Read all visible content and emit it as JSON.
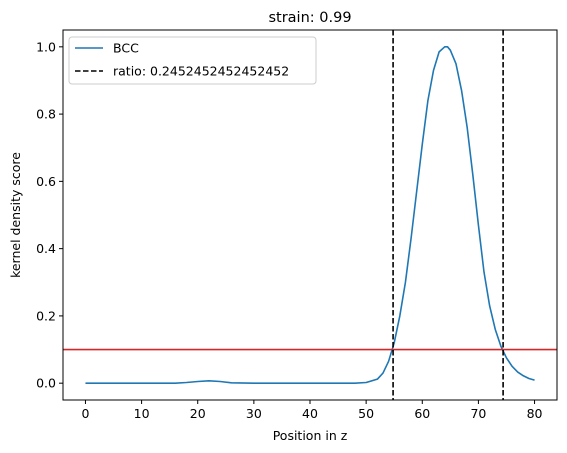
{
  "chart_data": {
    "type": "line",
    "title": "strain: 0.99",
    "xlabel": "Position in z",
    "ylabel": "kernel density score",
    "xlim": [
      -4,
      84
    ],
    "ylim": [
      -0.05,
      1.05
    ],
    "xticks": [
      0,
      10,
      20,
      30,
      40,
      50,
      60,
      70,
      80
    ],
    "yticks": [
      0.0,
      0.2,
      0.4,
      0.6,
      0.8,
      1.0
    ],
    "xtick_labels": [
      "0",
      "10",
      "20",
      "30",
      "40",
      "50",
      "60",
      "70",
      "80"
    ],
    "ytick_labels": [
      "0.0",
      "0.2",
      "0.4",
      "0.6",
      "0.8",
      "1.0"
    ],
    "grid": false,
    "legend_position": "top-left",
    "series": [
      {
        "name": "BCC",
        "color": "#1f77b4",
        "style": "solid",
        "x": [
          0,
          10,
          16,
          18,
          20,
          22,
          24,
          26,
          30,
          40,
          48,
          50,
          52,
          53,
          54,
          55,
          56,
          57,
          58,
          59,
          60,
          61,
          62,
          63,
          64,
          64.5,
          65,
          66,
          67,
          68,
          69,
          70,
          71,
          72,
          73,
          74,
          75,
          76,
          77,
          78,
          79,
          80
        ],
        "y": [
          0.0,
          0.0,
          0.0,
          0.002,
          0.005,
          0.007,
          0.005,
          0.001,
          0.0,
          0.0,
          0.0,
          0.002,
          0.012,
          0.03,
          0.065,
          0.12,
          0.2,
          0.3,
          0.43,
          0.57,
          0.71,
          0.84,
          0.93,
          0.985,
          1.0,
          1.0,
          0.99,
          0.95,
          0.87,
          0.76,
          0.62,
          0.47,
          0.33,
          0.23,
          0.16,
          0.11,
          0.075,
          0.05,
          0.033,
          0.022,
          0.014,
          0.009
        ]
      }
    ],
    "vlines": [
      {
        "name": "ratio: 0.2452452452452452",
        "color": "#000000",
        "style": "dashed",
        "x": [
          54.8,
          74.4
        ]
      }
    ],
    "hlines": [
      {
        "color": "#d62728",
        "style": "solid",
        "y": 0.1
      }
    ]
  }
}
